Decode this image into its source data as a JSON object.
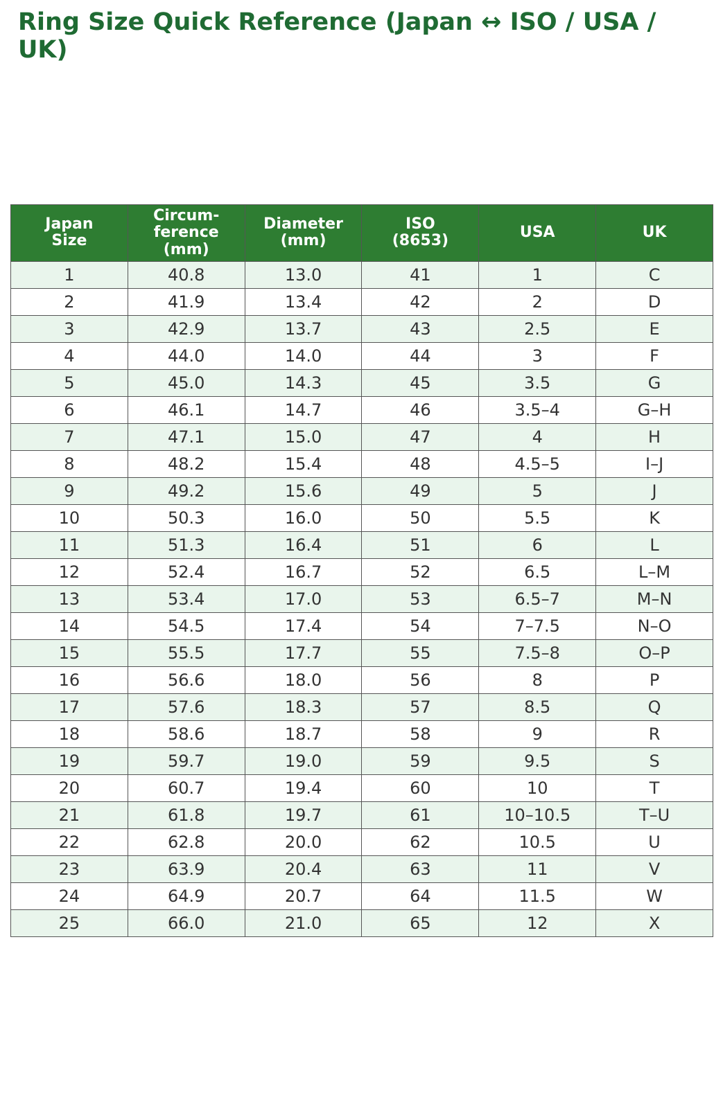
{
  "title": "Ring Size Quick Reference (Japan ↔ ISO / USA / UK)",
  "colors": {
    "title_color": "#1f6b33",
    "header_bg": "#2e7d32",
    "header_text": "#ffffff",
    "row_alt_bg": "#e9f5ec",
    "row_bg": "#ffffff",
    "border_color": "#555555",
    "cell_text": "#333333"
  },
  "table": {
    "columns": [
      "Japan\nSize",
      "Circum-\nference\n(mm)",
      "Diameter\n(mm)",
      "ISO\n(8653)",
      "USA",
      "UK"
    ],
    "rows": [
      [
        "1",
        "40.8",
        "13.0",
        "41",
        "1",
        "C"
      ],
      [
        "2",
        "41.9",
        "13.4",
        "42",
        "2",
        "D"
      ],
      [
        "3",
        "42.9",
        "13.7",
        "43",
        "2.5",
        "E"
      ],
      [
        "4",
        "44.0",
        "14.0",
        "44",
        "3",
        "F"
      ],
      [
        "5",
        "45.0",
        "14.3",
        "45",
        "3.5",
        "G"
      ],
      [
        "6",
        "46.1",
        "14.7",
        "46",
        "3.5–4",
        "G–H"
      ],
      [
        "7",
        "47.1",
        "15.0",
        "47",
        "4",
        "H"
      ],
      [
        "8",
        "48.2",
        "15.4",
        "48",
        "4.5–5",
        "I–J"
      ],
      [
        "9",
        "49.2",
        "15.6",
        "49",
        "5",
        "J"
      ],
      [
        "10",
        "50.3",
        "16.0",
        "50",
        "5.5",
        "K"
      ],
      [
        "11",
        "51.3",
        "16.4",
        "51",
        "6",
        "L"
      ],
      [
        "12",
        "52.4",
        "16.7",
        "52",
        "6.5",
        "L–M"
      ],
      [
        "13",
        "53.4",
        "17.0",
        "53",
        "6.5–7",
        "M–N"
      ],
      [
        "14",
        "54.5",
        "17.4",
        "54",
        "7–7.5",
        "N–O"
      ],
      [
        "15",
        "55.5",
        "17.7",
        "55",
        "7.5–8",
        "O–P"
      ],
      [
        "16",
        "56.6",
        "18.0",
        "56",
        "8",
        "P"
      ],
      [
        "17",
        "57.6",
        "18.3",
        "57",
        "8.5",
        "Q"
      ],
      [
        "18",
        "58.6",
        "18.7",
        "58",
        "9",
        "R"
      ],
      [
        "19",
        "59.7",
        "19.0",
        "59",
        "9.5",
        "S"
      ],
      [
        "20",
        "60.7",
        "19.4",
        "60",
        "10",
        "T"
      ],
      [
        "21",
        "61.8",
        "19.7",
        "61",
        "10–10.5",
        "T–U"
      ],
      [
        "22",
        "62.8",
        "20.0",
        "62",
        "10.5",
        "U"
      ],
      [
        "23",
        "63.9",
        "20.4",
        "63",
        "11",
        "V"
      ],
      [
        "24",
        "64.9",
        "20.7",
        "64",
        "11.5",
        "W"
      ],
      [
        "25",
        "66.0",
        "21.0",
        "65",
        "12",
        "X"
      ]
    ]
  }
}
